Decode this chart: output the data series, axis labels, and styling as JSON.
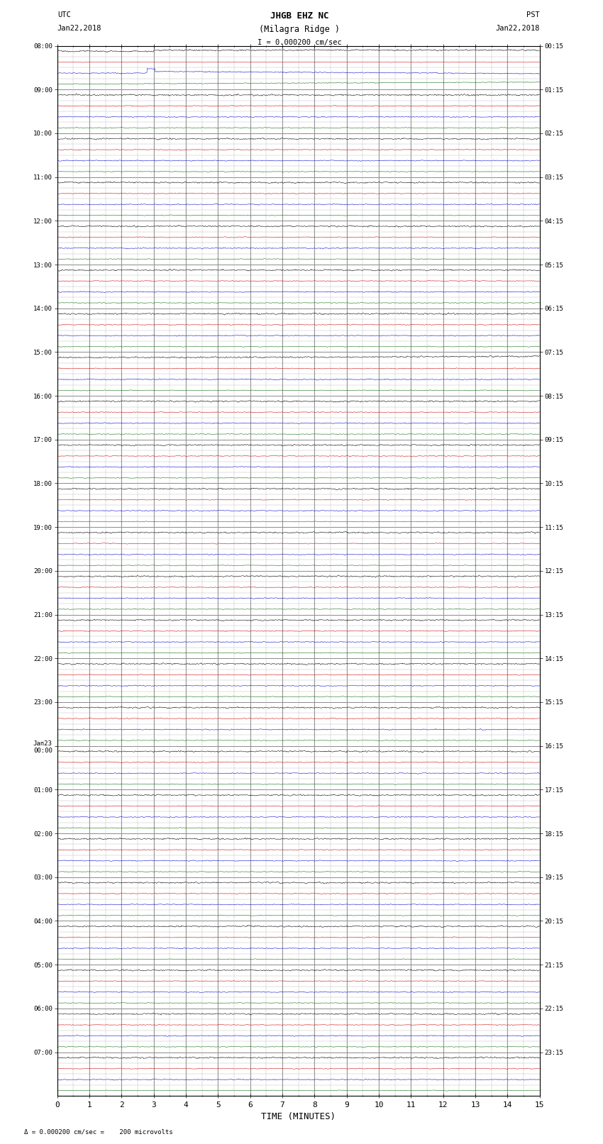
{
  "title_line1": "JHGB EHZ NC",
  "title_line2": "(Milagra Ridge )",
  "scale_text": "I = 0.000200 cm/sec",
  "utc_top1": "UTC",
  "utc_top2": "Jan22,2018",
  "pst_top1": "PST",
  "pst_top2": "Jan22,2018",
  "xlabel": "TIME (MINUTES)",
  "footer": "= 0.000200 cm/sec =    200 microvolts",
  "xmin": 0,
  "xmax": 15,
  "xticks": [
    0,
    1,
    2,
    3,
    4,
    5,
    6,
    7,
    8,
    9,
    10,
    11,
    12,
    13,
    14,
    15
  ],
  "bg_color": "#ffffff",
  "trace_colors": [
    "#000000",
    "#cc0000",
    "#0000cc",
    "#006600"
  ],
  "utc_labels": [
    "08:00",
    "09:00",
    "10:00",
    "11:00",
    "12:00",
    "13:00",
    "14:00",
    "15:00",
    "16:00",
    "17:00",
    "18:00",
    "19:00",
    "20:00",
    "21:00",
    "22:00",
    "23:00",
    "Jan23\n00:00",
    "01:00",
    "02:00",
    "03:00",
    "04:00",
    "05:00",
    "06:00",
    "07:00"
  ],
  "pst_labels": [
    "00:15",
    "01:15",
    "02:15",
    "03:15",
    "04:15",
    "05:15",
    "06:15",
    "07:15",
    "08:15",
    "09:15",
    "10:15",
    "11:15",
    "12:15",
    "13:15",
    "14:15",
    "15:15",
    "16:15",
    "17:15",
    "18:15",
    "19:15",
    "20:15",
    "21:15",
    "22:15",
    "23:15"
  ],
  "num_hours": 24,
  "traces_per_hour": 4,
  "grid_color": "#777777",
  "minor_grid_color": "#bbbbbb",
  "trace_noise": [
    0.03,
    0.018,
    0.02,
    0.015
  ],
  "trace_lw": [
    0.35,
    0.35,
    0.35,
    0.35
  ]
}
